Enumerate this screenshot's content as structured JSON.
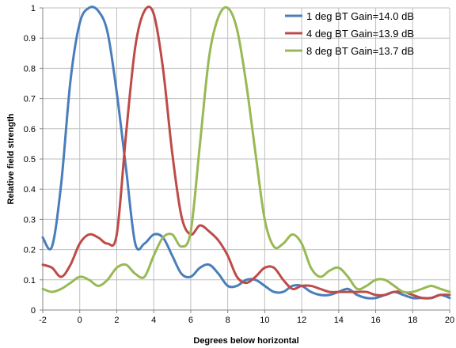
{
  "chart_data": {
    "type": "line",
    "xlabel": "Degrees below horizontal",
    "ylabel": "Relative field strength",
    "xlim": [
      -2,
      20
    ],
    "ylim": [
      0,
      1
    ],
    "grid": true,
    "legend_position": "top-right",
    "x_ticks": [
      "-2",
      "0",
      "2",
      "4",
      "6",
      "8",
      "10",
      "12",
      "14",
      "16",
      "18",
      "20"
    ],
    "y_ticks": [
      "0",
      "0.1",
      "0.2",
      "0.3",
      "0.4",
      "0.5",
      "0.6",
      "0.7",
      "0.8",
      "0.9",
      "1"
    ],
    "series": [
      {
        "name": "1 deg BT  Gain=14.0 dB",
        "color": "#4a7ebb",
        "x": [
          -2,
          -1.5,
          -1,
          -0.5,
          0,
          0.5,
          1,
          1.5,
          2,
          2.5,
          3,
          3.5,
          4,
          4.5,
          5,
          5.5,
          6,
          6.5,
          7,
          7.5,
          8,
          8.5,
          9,
          9.5,
          10,
          10.5,
          11,
          11.5,
          12,
          12.5,
          13,
          13.5,
          14,
          14.5,
          15,
          15.5,
          16,
          16.5,
          17,
          17.5,
          18,
          18.5,
          19,
          19.5,
          20
        ],
        "y": [
          0.24,
          0.21,
          0.42,
          0.76,
          0.95,
          1.0,
          0.99,
          0.92,
          0.72,
          0.47,
          0.22,
          0.22,
          0.25,
          0.24,
          0.18,
          0.12,
          0.11,
          0.14,
          0.15,
          0.12,
          0.08,
          0.08,
          0.1,
          0.1,
          0.08,
          0.06,
          0.06,
          0.08,
          0.08,
          0.06,
          0.05,
          0.05,
          0.06,
          0.07,
          0.05,
          0.04,
          0.04,
          0.05,
          0.06,
          0.05,
          0.04,
          0.04,
          0.04,
          0.05,
          0.04
        ]
      },
      {
        "name": "4 deg BT  Gain=13.9 dB",
        "color": "#be4b48",
        "x": [
          -2,
          -1.5,
          -1,
          -0.5,
          0,
          0.5,
          1,
          1.5,
          2,
          2.5,
          3,
          3.5,
          4,
          4.5,
          5,
          5.5,
          6,
          6.5,
          7,
          7.5,
          8,
          8.5,
          9,
          9.5,
          10,
          10.5,
          11,
          11.5,
          12,
          12.5,
          13,
          13.5,
          14,
          14.5,
          15,
          15.5,
          16,
          16.5,
          17,
          17.5,
          18,
          18.5,
          19,
          19.5,
          20
        ],
        "y": [
          0.15,
          0.14,
          0.11,
          0.15,
          0.22,
          0.25,
          0.24,
          0.22,
          0.25,
          0.58,
          0.87,
          0.99,
          0.98,
          0.8,
          0.52,
          0.31,
          0.25,
          0.28,
          0.26,
          0.23,
          0.18,
          0.11,
          0.09,
          0.11,
          0.14,
          0.14,
          0.1,
          0.07,
          0.08,
          0.08,
          0.07,
          0.06,
          0.06,
          0.06,
          0.06,
          0.06,
          0.05,
          0.05,
          0.06,
          0.06,
          0.05,
          0.04,
          0.04,
          0.05,
          0.05
        ]
      },
      {
        "name": "8 deg BT  Gain=13.7 dB",
        "color": "#98b954",
        "x": [
          -2,
          -1.5,
          -1,
          -0.5,
          0,
          0.5,
          1,
          1.5,
          2,
          2.5,
          3,
          3.5,
          4,
          4.5,
          5,
          5.5,
          6,
          6.5,
          7,
          7.5,
          8,
          8.5,
          9,
          9.5,
          10,
          10.5,
          11,
          11.5,
          12,
          12.5,
          13,
          13.5,
          14,
          14.5,
          15,
          15.5,
          16,
          16.5,
          17,
          17.5,
          18,
          18.5,
          19,
          19.5,
          20
        ],
        "y": [
          0.07,
          0.06,
          0.07,
          0.09,
          0.11,
          0.1,
          0.08,
          0.1,
          0.14,
          0.15,
          0.12,
          0.11,
          0.18,
          0.24,
          0.25,
          0.21,
          0.26,
          0.55,
          0.84,
          0.97,
          1.0,
          0.93,
          0.75,
          0.52,
          0.3,
          0.21,
          0.22,
          0.25,
          0.22,
          0.14,
          0.11,
          0.13,
          0.14,
          0.11,
          0.07,
          0.08,
          0.1,
          0.1,
          0.08,
          0.06,
          0.06,
          0.07,
          0.08,
          0.07,
          0.06
        ]
      }
    ]
  }
}
